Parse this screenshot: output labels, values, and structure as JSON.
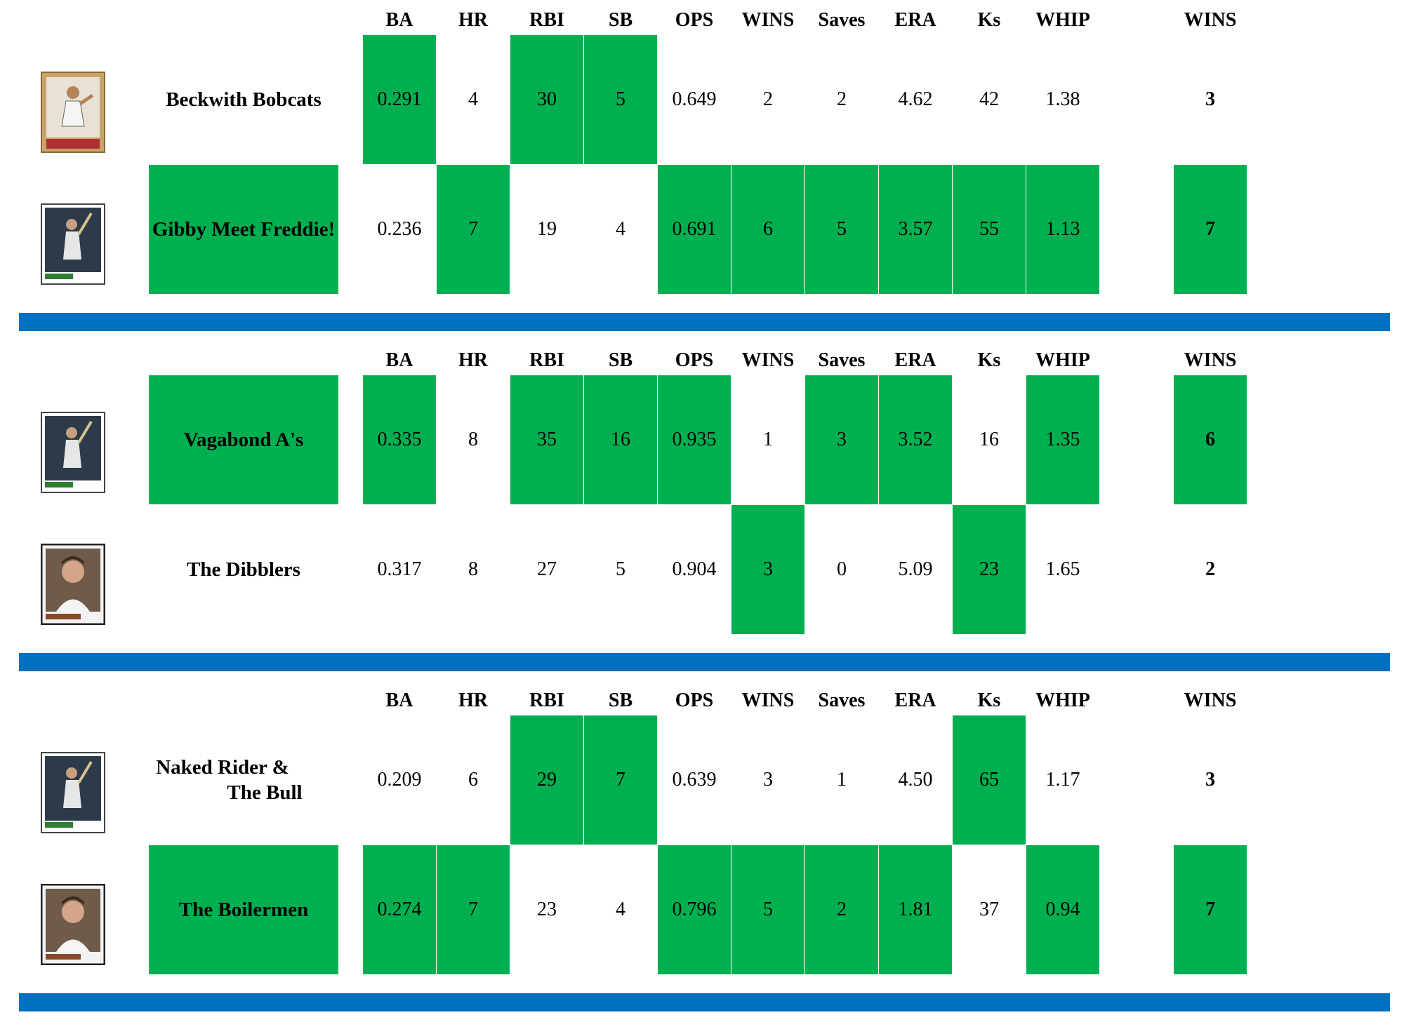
{
  "columns": [
    "BA",
    "HR",
    "RBI",
    "SB",
    "OPS",
    "WINS",
    "Saves",
    "ERA",
    "Ks",
    "WHIP"
  ],
  "wins_header": "WINS",
  "highlight_color": "#00b050",
  "divider_color": "#0070c0",
  "matchups": [
    {
      "teams": [
        {
          "name": "Beckwith Bobcats",
          "name_highlighted": false,
          "card_icon": "baseball-card-pitcher-icon",
          "stats": [
            "0.291",
            "4",
            "30",
            "5",
            "0.649",
            "2",
            "2",
            "4.62",
            "42",
            "1.38"
          ],
          "stat_wins": [
            true,
            false,
            true,
            true,
            false,
            false,
            false,
            false,
            false,
            false
          ],
          "wins": "3",
          "wins_highlighted": false
        },
        {
          "name": "Gibby Meet Freddie!",
          "name_highlighted": true,
          "card_icon": "baseball-card-batter-icon",
          "stats": [
            "0.236",
            "7",
            "19",
            "4",
            "0.691",
            "6",
            "5",
            "3.57",
            "55",
            "1.13"
          ],
          "stat_wins": [
            false,
            true,
            false,
            false,
            true,
            true,
            true,
            true,
            true,
            true
          ],
          "wins": "7",
          "wins_highlighted": true
        }
      ]
    },
    {
      "teams": [
        {
          "name": "Vagabond A's",
          "name_highlighted": true,
          "card_icon": "baseball-card-batter-icon",
          "stats": [
            "0.335",
            "8",
            "35",
            "16",
            "0.935",
            "1",
            "3",
            "3.52",
            "16",
            "1.35"
          ],
          "stat_wins": [
            true,
            false,
            true,
            true,
            true,
            false,
            true,
            true,
            false,
            true
          ],
          "wins": "6",
          "wins_highlighted": true
        },
        {
          "name": "The Dibblers",
          "name_highlighted": false,
          "card_icon": "baseball-card-portrait-icon",
          "stats": [
            "0.317",
            "8",
            "27",
            "5",
            "0.904",
            "3",
            "0",
            "5.09",
            "23",
            "1.65"
          ],
          "stat_wins": [
            false,
            false,
            false,
            false,
            false,
            true,
            false,
            false,
            true,
            false
          ],
          "wins": "2",
          "wins_highlighted": false
        }
      ]
    },
    {
      "teams": [
        {
          "name_line1": "Naked Rider &",
          "name_line2": "The Bull",
          "name_highlighted": false,
          "card_icon": "baseball-card-batter-icon",
          "stats": [
            "0.209",
            "6",
            "29",
            "7",
            "0.639",
            "3",
            "1",
            "4.50",
            "65",
            "1.17"
          ],
          "stat_wins": [
            false,
            false,
            true,
            true,
            false,
            false,
            false,
            false,
            true,
            false
          ],
          "wins": "3",
          "wins_highlighted": false
        },
        {
          "name": "The Boilermen",
          "name_highlighted": true,
          "card_icon": "baseball-card-portrait-icon",
          "stats": [
            "0.274",
            "7",
            "23",
            "4",
            "0.796",
            "5",
            "2",
            "1.81",
            "37",
            "0.94"
          ],
          "stat_wins": [
            true,
            true,
            false,
            false,
            true,
            true,
            true,
            true,
            false,
            true
          ],
          "wins": "7",
          "wins_highlighted": true
        }
      ]
    }
  ]
}
